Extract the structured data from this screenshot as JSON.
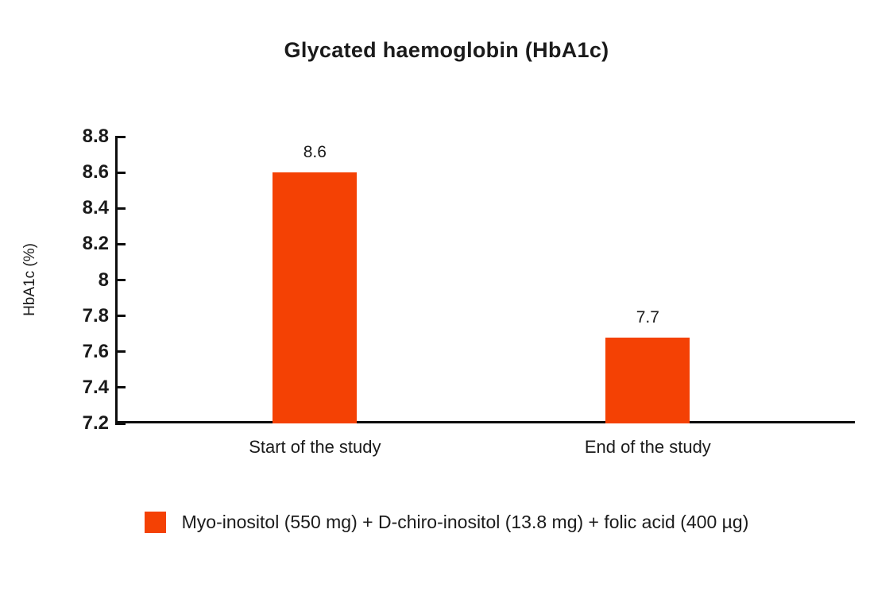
{
  "page": {
    "background": "#ffffff"
  },
  "chart_data": {
    "type": "bar",
    "title": "Glycated haemoglobin (HbA1c)",
    "ylabel": "HbA1c (%)",
    "xlabel": "",
    "categories": [
      "Start of the study",
      "End of the study"
    ],
    "series": [
      {
        "name": "Myo-inositol (550 mg) + D-chiro-inositol (13.8 mg) + folic acid (400 µg)",
        "values": [
          8.6,
          7.7
        ],
        "values_as_drawn": [
          8.6,
          7.68
        ],
        "color": "#f44104"
      }
    ],
    "bar_value_labels": [
      "8.6",
      "7.7"
    ],
    "ylim": [
      7.2,
      8.8
    ],
    "yticks": [
      8.8,
      8.6,
      8.4,
      8.2,
      8,
      7.8,
      7.6,
      7.4,
      7.2
    ],
    "grid": false,
    "legend_position": "bottom",
    "colors": {
      "bar": "#f44104",
      "axis": "#0d0d0d",
      "text": "#1b1b1b"
    }
  }
}
